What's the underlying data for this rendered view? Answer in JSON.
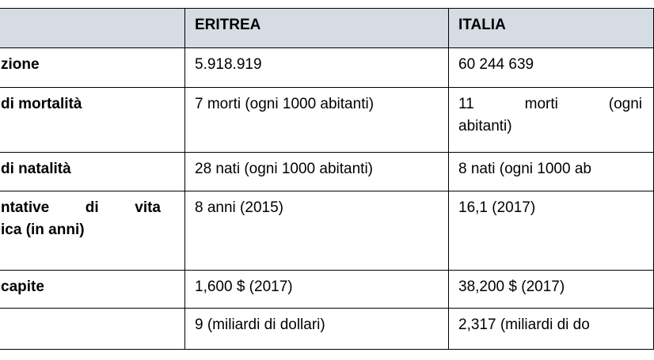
{
  "table": {
    "header": [
      "ERITREA",
      "ITALIA"
    ],
    "rows": [
      {
        "label": [
          "zione"
        ],
        "eritrea": [
          "5.918.919"
        ],
        "italia": [
          "60 244 639"
        ]
      },
      {
        "label": [
          "di mortalità"
        ],
        "eritrea": [
          "7 morti (ogni 1000 abitanti)"
        ],
        "italia": [
          "11 morti (ogni",
          "abitanti)"
        ]
      },
      {
        "label": [
          "di natalità"
        ],
        "eritrea": [
          "28 nati (ogni 1000 abitanti)"
        ],
        "italia": [
          "8 nati (ogni 1000 ab"
        ]
      },
      {
        "label": [
          "ntative di vita",
          "ica (in anni)"
        ],
        "eritrea": [
          "8 anni (2015)"
        ],
        "italia": [
          "16,1 (2017)"
        ]
      },
      {
        "label": [
          "capite"
        ],
        "eritrea": [
          "1,600 $ (2017)"
        ],
        "italia": [
          "38,200 $ (2017)"
        ]
      },
      {
        "label": [],
        "eritrea": [
          "9 (miliardi di dollari)"
        ],
        "italia": [
          "2,317 (miliardi di do"
        ]
      }
    ]
  }
}
